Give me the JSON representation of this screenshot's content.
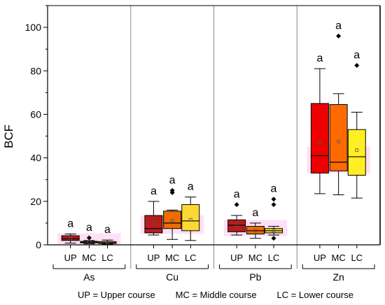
{
  "chart_data": {
    "type": "boxplot",
    "ylabel": "BCF",
    "ylim": [
      0,
      110
    ],
    "yticks": [
      0,
      20,
      40,
      60,
      80,
      100
    ],
    "categories": [
      "UP",
      "MC",
      "LC"
    ],
    "groups": [
      {
        "name": "As",
        "boxes": [
          {
            "cat": "UP",
            "min": 0.8,
            "q1": 2.0,
            "median": 2.8,
            "q3": 4.2,
            "max": 5.0,
            "mean": 3.0,
            "outliers": [],
            "label": "a"
          },
          {
            "cat": "MC",
            "min": 0.5,
            "q1": 0.9,
            "median": 1.2,
            "q3": 1.6,
            "max": 2.0,
            "mean": 1.3,
            "outliers": [
              3.2
            ],
            "label": "a"
          },
          {
            "cat": "LC",
            "min": 0.3,
            "q1": 0.6,
            "median": 1.0,
            "q3": 1.5,
            "max": 2.2,
            "mean": 1.0,
            "outliers": [],
            "label": "a"
          }
        ]
      },
      {
        "name": "Cu",
        "boxes": [
          {
            "cat": "UP",
            "min": 4.5,
            "q1": 5.5,
            "median": 7.5,
            "q3": 13.5,
            "max": 20.0,
            "mean": 10.0,
            "outliers": [],
            "label": "a"
          },
          {
            "cat": "MC",
            "min": 2.5,
            "q1": 7.5,
            "median": 10.0,
            "q3": 15.5,
            "max": 16.0,
            "mean": 11.0,
            "outliers": [
              24.0,
              25.0
            ],
            "label": "a"
          },
          {
            "cat": "LC",
            "min": 2.0,
            "q1": 6.5,
            "median": 11.0,
            "q3": 18.5,
            "max": 22.0,
            "mean": 11.5,
            "outliers": [],
            "label": "a"
          }
        ]
      },
      {
        "name": "Pb",
        "boxes": [
          {
            "cat": "UP",
            "min": 4.5,
            "q1": 6.0,
            "median": 9.0,
            "q3": 11.5,
            "max": 13.5,
            "mean": 9.0,
            "outliers": [
              18.5
            ],
            "label": "a"
          },
          {
            "cat": "MC",
            "min": 3.0,
            "q1": 5.0,
            "median": 6.5,
            "q3": 8.5,
            "max": 10.0,
            "mean": 6.5,
            "outliers": [],
            "label": "a"
          },
          {
            "cat": "LC",
            "min": 4.5,
            "q1": 5.5,
            "median": 6.5,
            "q3": 7.5,
            "max": 8.5,
            "mean": 6.5,
            "outliers": [
              18.5,
              21.0,
              3.0
            ],
            "label": "a"
          }
        ]
      },
      {
        "name": "Zn",
        "boxes": [
          {
            "cat": "UP",
            "min": 23.5,
            "q1": 33.0,
            "median": 41.0,
            "q3": 65.0,
            "max": 81.0,
            "mean": 47.0,
            "outliers": [],
            "label": "a"
          },
          {
            "cat": "MC",
            "min": 23.0,
            "q1": 34.0,
            "median": 38.0,
            "q3": 64.5,
            "max": 69.5,
            "mean": 47.5,
            "outliers": [
              96.0
            ],
            "label": "a"
          },
          {
            "cat": "LC",
            "min": 21.5,
            "q1": 32.0,
            "median": 40.5,
            "q3": 53.0,
            "max": 61.0,
            "mean": 43.5,
            "outliers": [
              82.5
            ],
            "label": "a"
          }
        ]
      }
    ],
    "colors": {
      "UP": "#b71c1c",
      "MC": "#ef6c00",
      "LC": "#fdd835",
      "LC_Zn": "#ffee22",
      "UP_Zn": "#ee0000",
      "MC_Zn": "#ff6a00",
      "highlight": "#ff55cc"
    },
    "legend_note": "UP = Upper course        MC = Middle course        LC = Lower course"
  }
}
